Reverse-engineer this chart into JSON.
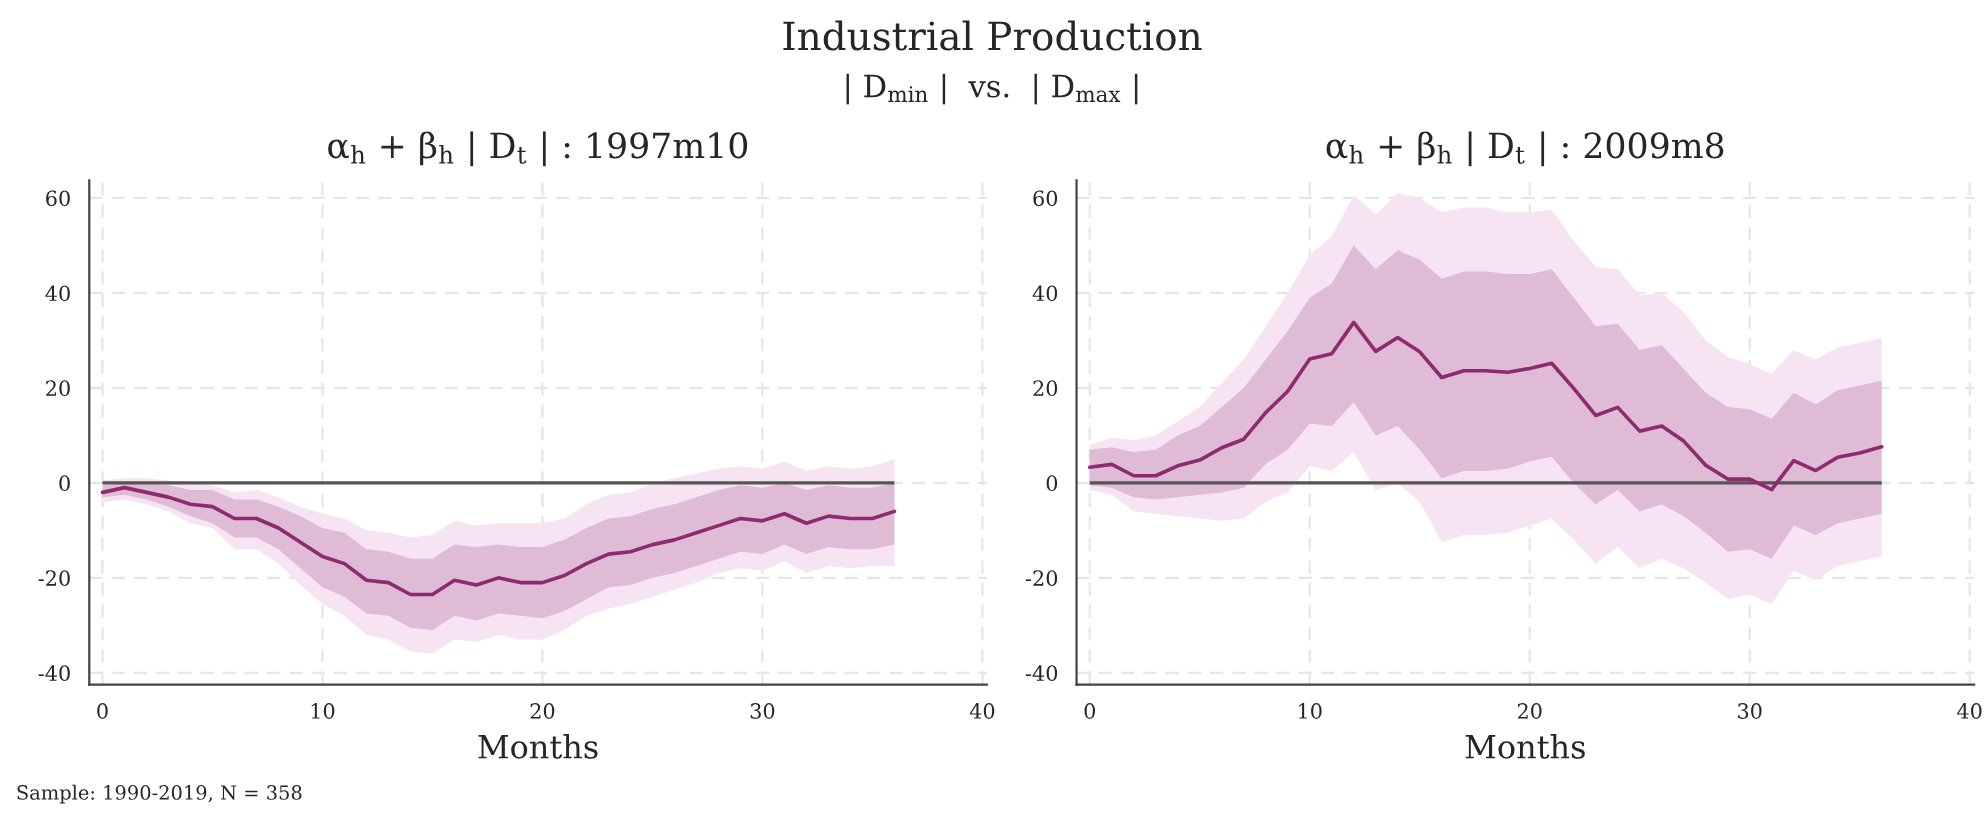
{
  "chart_data": [
    {
      "type": "line",
      "title": "α$_{h}$ + β$_{h}$ | D$_{t}$ | : 1997m10",
      "xlabel": "Months",
      "annotations": [
        "Industrial Production",
        "| D$_{min}$ |  vs.  | D$_{max}$ |",
        "Sample: 1990-2019, N = 358"
      ],
      "x": [
        0,
        1,
        2,
        3,
        4,
        5,
        6,
        7,
        8,
        9,
        10,
        11,
        12,
        13,
        14,
        15,
        16,
        17,
        18,
        19,
        20,
        21,
        22,
        23,
        24,
        25,
        26,
        27,
        28,
        29,
        30,
        31,
        32,
        33,
        34,
        35,
        36
      ],
      "series": [
        {
          "color": "#8e2a6f",
          "values": [
            -2,
            -1,
            -2,
            -3,
            -4.5,
            -5,
            -7.5,
            -7.5,
            -9.5,
            -12.5,
            -15.5,
            -17,
            -20.5,
            -21,
            -23.5,
            -23.5,
            -20.5,
            -21.5,
            -20,
            -21,
            -21,
            -19.5,
            -17,
            -15,
            -14.5,
            -13,
            -12,
            -10.5,
            -9,
            -7.5,
            -8,
            -6.5,
            -8.5,
            -7,
            -7.5,
            -7.5,
            -6
          ],
          "lower": [
            -3,
            -2.5,
            -3.5,
            -5,
            -7,
            -8.5,
            -11.5,
            -11.5,
            -14,
            -18,
            -22,
            -24,
            -27.5,
            -28,
            -30.5,
            -31,
            -28,
            -29,
            -27.5,
            -28,
            -28.5,
            -27,
            -24.5,
            -22,
            -21.5,
            -20,
            -19,
            -17.5,
            -16,
            -14.5,
            -15,
            -13,
            -15,
            -13.5,
            -14,
            -14,
            -13
          ],
          "upper": [
            -0.5,
            0,
            0,
            -0.5,
            -1.5,
            -1.5,
            -3.5,
            -3.5,
            -5,
            -7,
            -9.5,
            -10.5,
            -14,
            -14.5,
            -16,
            -16,
            -13,
            -13.5,
            -13,
            -13.5,
            -13.5,
            -12,
            -9.5,
            -7.5,
            -7,
            -5.5,
            -4.5,
            -3,
            -1.5,
            -0.5,
            -1,
            0,
            -1.5,
            -0.5,
            -1,
            -1,
            0
          ]
        },
        {
          "color": "#f6e4f2",
          "values": [
            null,
            null,
            null,
            null,
            null,
            null,
            null,
            null,
            null,
            null,
            null,
            null,
            null,
            null,
            null,
            null,
            null,
            null,
            null,
            null,
            null,
            null,
            null,
            null,
            null,
            null,
            null,
            null,
            null,
            null,
            null,
            null,
            null,
            null,
            null,
            null,
            null
          ],
          "lower": [
            -4,
            -3.5,
            -4.5,
            -6,
            -8.5,
            -9.5,
            -14,
            -14,
            -17,
            -21.5,
            -25.5,
            -28,
            -32,
            -33,
            -35.5,
            -36,
            -33,
            -33.5,
            -32,
            -33,
            -33,
            -31,
            -28,
            -26.5,
            -25.5,
            -24,
            -22.5,
            -21,
            -19,
            -18,
            -18.5,
            -16.5,
            -19,
            -17.5,
            -18,
            -17.5,
            -17.5
          ],
          "upper": [
            0.5,
            1,
            1,
            0.5,
            0,
            -0.5,
            -2,
            -1.5,
            -3,
            -5,
            -6.5,
            -7.5,
            -10,
            -10.5,
            -11.5,
            -11,
            -8,
            -9,
            -8.5,
            -8.5,
            -8.5,
            -7.5,
            -4.5,
            -2.5,
            -2,
            0,
            1,
            2,
            3,
            3.5,
            3,
            4.5,
            2.5,
            3.5,
            3,
            3.5,
            5
          ]
        }
      ],
      "ref_lines": [
        {
          "axis": "y",
          "value": 0,
          "color": "#555555"
        }
      ],
      "xlim": [
        -0.6,
        40.2
      ],
      "xticks": [
        0,
        10,
        20,
        30,
        40
      ],
      "ylim": [
        -42.5,
        63.7
      ],
      "yticks": [
        -40,
        -20,
        0,
        20,
        40,
        60
      ],
      "grid": true,
      "line_style": "solid"
    },
    {
      "type": "line",
      "title": "α$_{h}$ + β$_{h}$ | D$_{t}$ | : 2009m8",
      "xlabel": "Months",
      "x": [
        0,
        1,
        2,
        3,
        4,
        5,
        6,
        7,
        8,
        9,
        10,
        11,
        12,
        13,
        14,
        15,
        16,
        17,
        18,
        19,
        20,
        21,
        22,
        23,
        24,
        25,
        26,
        27,
        28,
        29,
        30,
        31,
        32,
        33,
        34,
        35,
        36
      ],
      "series": [
        {
          "color": "#8e2a6f",
          "values": [
            3.3,
            3.9,
            1.5,
            1.5,
            3.6,
            4.8,
            7.4,
            9.2,
            14.8,
            19.3,
            26.1,
            27.2,
            33.8,
            27.7,
            30.6,
            27.6,
            22.2,
            23.6,
            23.6,
            23.3,
            24.1,
            25.2,
            19.9,
            14.2,
            15.9,
            10.9,
            12,
            8.8,
            3.7,
            0.8,
            0.8,
            -1.4,
            4.7,
            2.6,
            5.4,
            6.3,
            7.6
          ],
          "lower": [
            -0.5,
            -1,
            -3,
            -3.5,
            -3,
            -2.5,
            -2,
            -1,
            4,
            7,
            12.5,
            12,
            17,
            10,
            12,
            7,
            1,
            2.5,
            2.5,
            3,
            4.5,
            5.5,
            0,
            -4.5,
            -1.5,
            -6,
            -4.5,
            -7,
            -10.5,
            -14.5,
            -14,
            -16,
            -9,
            -11,
            -8.5,
            -7.5,
            -6.5
          ],
          "upper": [
            7,
            7.5,
            6.5,
            7,
            10,
            12,
            16,
            20,
            26,
            32,
            39,
            42,
            50,
            45,
            49,
            47,
            43,
            44.5,
            44.5,
            44,
            44,
            45,
            39,
            33,
            33.5,
            28,
            29,
            24,
            19,
            16,
            15.5,
            13.5,
            19,
            16.5,
            19.5,
            20.5,
            21.5
          ]
        },
        {
          "color": "#f6e4f2",
          "values": [
            null,
            null,
            null,
            null,
            null,
            null,
            null,
            null,
            null,
            null,
            null,
            null,
            null,
            null,
            null,
            null,
            null,
            null,
            null,
            null,
            null,
            null,
            null,
            null,
            null,
            null,
            null,
            null,
            null,
            null,
            null,
            null,
            null,
            null,
            null,
            null,
            null
          ],
          "lower": [
            -1.5,
            -2.5,
            -6,
            -6.5,
            -7,
            -7.5,
            -8,
            -7.5,
            -4,
            -2,
            3.5,
            2.5,
            6.5,
            -1.5,
            0,
            -4,
            -12.5,
            -11,
            -11,
            -10.5,
            -9,
            -7.5,
            -12,
            -17,
            -13.5,
            -18,
            -16,
            -18,
            -21,
            -24.5,
            -23.5,
            -25.5,
            -18.5,
            -20.5,
            -17.5,
            -16.5,
            -15.5
          ],
          "upper": [
            8,
            9.5,
            9,
            10,
            13,
            16,
            21,
            26,
            33,
            40,
            48,
            52,
            60.5,
            56.5,
            61,
            60,
            57,
            58,
            58,
            57,
            57,
            57.5,
            51,
            45.5,
            45,
            39.5,
            40,
            36,
            30,
            26.5,
            25,
            23,
            28,
            26,
            28.5,
            29.5,
            30.5
          ]
        }
      ],
      "ref_lines": [
        {
          "axis": "y",
          "value": 0,
          "color": "#555555"
        }
      ],
      "xlim": [
        -0.6,
        40.2
      ],
      "xticks": [
        0,
        10,
        20,
        30,
        40
      ],
      "ylim": [
        -42.5,
        63.7
      ],
      "yticks": [
        -40,
        -20,
        0,
        20,
        40,
        60
      ],
      "grid": true,
      "line_style": "solid"
    }
  ]
}
